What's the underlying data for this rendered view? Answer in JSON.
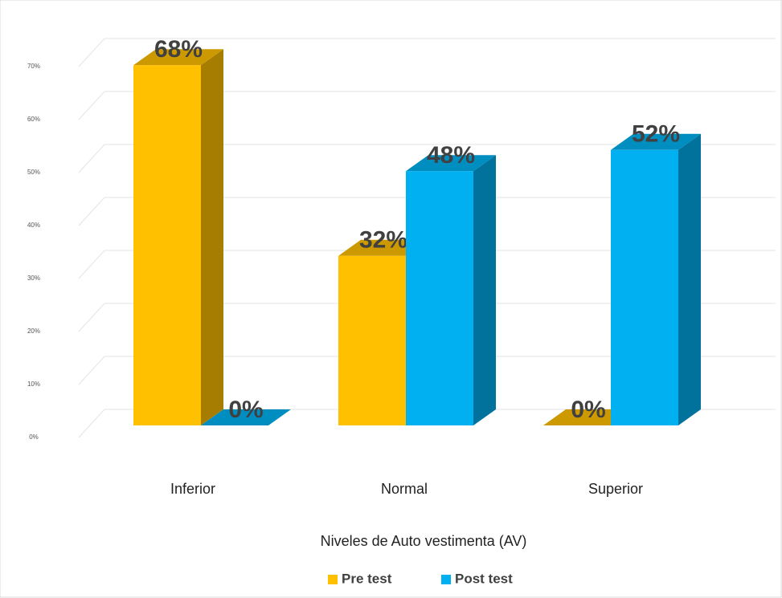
{
  "chart_data": {
    "type": "bar3d",
    "x_label": "Niveles de  Auto vestimenta (AV)",
    "categories": [
      "Inferior",
      "Normal",
      "Superior"
    ],
    "series": [
      {
        "name": "Pre test",
        "color": "#FFC000",
        "values": [
          68,
          32,
          0
        ],
        "value_labels": [
          "68%",
          "32%",
          "0%"
        ]
      },
      {
        "name": "Post test",
        "color": "#00B0F0",
        "values": [
          0,
          48,
          52
        ],
        "value_labels": [
          "0%",
          "48%",
          "52%"
        ]
      }
    ],
    "ylim": [
      0,
      70
    ],
    "yticks": [
      {
        "value": 0,
        "label": "0%"
      },
      {
        "value": 10,
        "label": "10%"
      },
      {
        "value": 20,
        "label": "20%"
      },
      {
        "value": 30,
        "label": "30%"
      },
      {
        "value": 40,
        "label": "40%"
      },
      {
        "value": 50,
        "label": "50%"
      },
      {
        "value": 60,
        "label": "60%"
      },
      {
        "value": 70,
        "label": "70%"
      }
    ],
    "grid": true,
    "legend": "bottom"
  }
}
